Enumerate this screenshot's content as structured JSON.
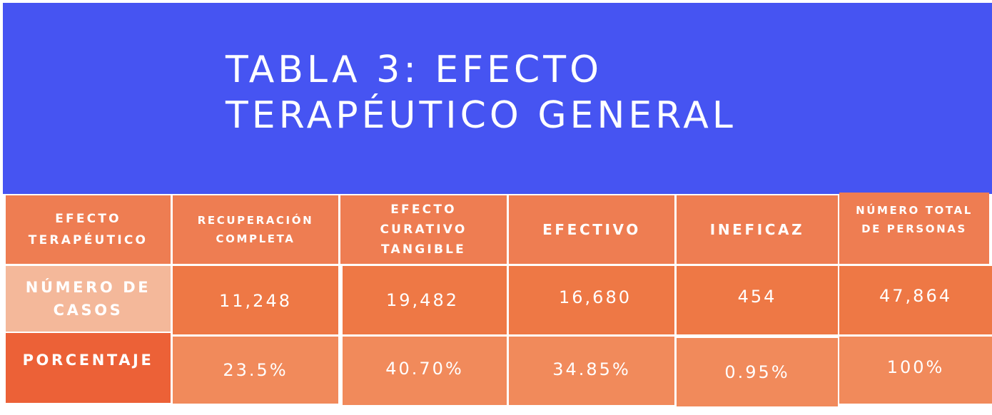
{
  "title": {
    "line1": "TABLA 3: EFECTO",
    "line2": "TERAPÉUTICO GENERAL"
  },
  "table": {
    "header": {
      "row_label": [
        "EFECTO",
        "TERAPÉUTICO"
      ],
      "columns": [
        [
          "RECUPERACIÓN",
          "COMPLETA"
        ],
        [
          "EFECTO",
          "CURATIVO",
          "TANGIBLE"
        ],
        [
          "EFECTIVO"
        ],
        [
          "INEFICAZ"
        ],
        [
          "NÚMERO TOTAL",
          "DE PERSONAS"
        ]
      ]
    },
    "rows": [
      {
        "label": [
          "NÚMERO DE",
          "CASOS"
        ],
        "values": [
          "11,248",
          "19,482",
          "16,680",
          "454",
          "47,864"
        ]
      },
      {
        "label": [
          "PORCENTAJE"
        ],
        "values": [
          "23.5%",
          "40.70%",
          "34.85%",
          "0.95%",
          "100%"
        ]
      }
    ]
  },
  "colors": {
    "banner": "#4654f2",
    "header_cells": "#ee7d52",
    "row1_label": "#f4b89a",
    "row1_cells": "#ee7845",
    "row2_label": "#ec6137",
    "row2_cells": "#f18a5b"
  }
}
